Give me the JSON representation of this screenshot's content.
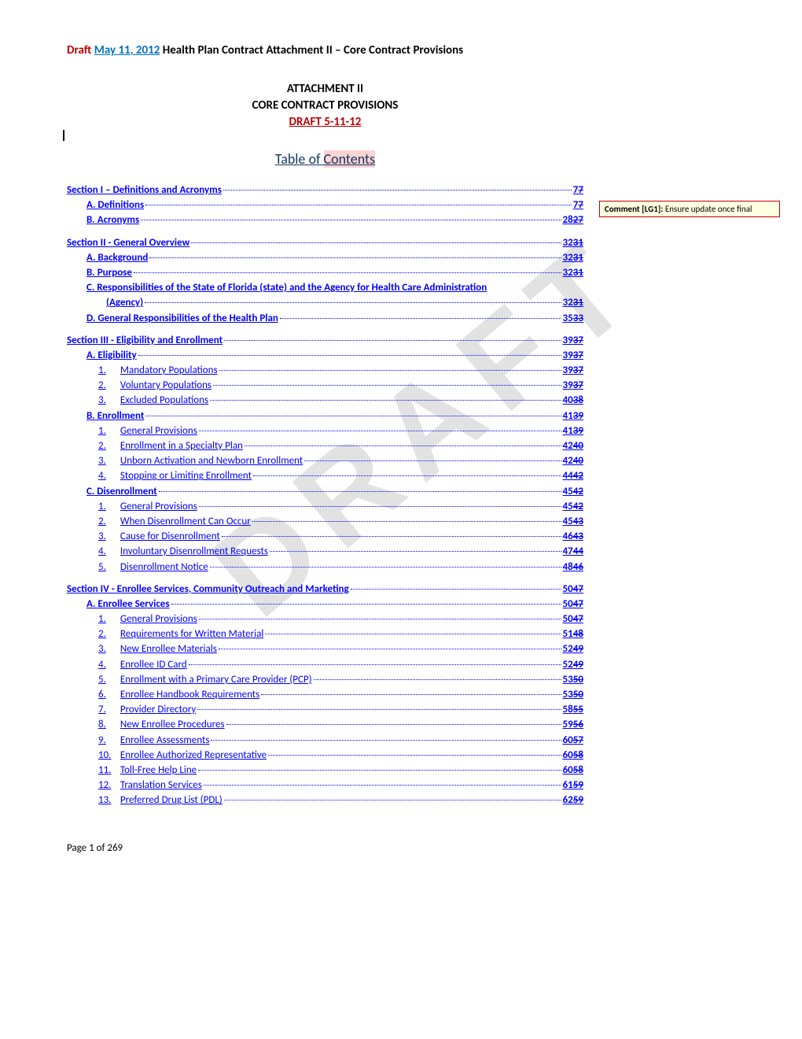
{
  "header": {
    "draft": "Draft ",
    "date_underlined": "May 11",
    "date_after": ", 2012",
    "rest": " Health Plan Contract Attachment II – Core Contract Provisions"
  },
  "title_block": {
    "line1": "ATTACHMENT II",
    "line2": "CORE CONTRACT PROVISIONS",
    "line3": "DRAFT 5-11-12"
  },
  "toc_title": {
    "prefix": "Table of ",
    "highlight": "Contents"
  },
  "sections": [
    {
      "type": "section",
      "text": "Section I – Definitions and Acronyms",
      "page_new": " 7",
      "page_old": "7"
    },
    {
      "type": "sub",
      "text": "A.  Definitions",
      "page_new": "7",
      "page_old": "7"
    },
    {
      "type": "sub",
      "text": "B.  Acronyms",
      "page_new": "28",
      "page_old": "27"
    },
    {
      "type": "section",
      "text": "Section II - General Overview",
      "page_new": "32",
      "page_old": "31"
    },
    {
      "type": "sub",
      "text": "A.  Background",
      "page_new": "32",
      "page_old": "31"
    },
    {
      "type": "sub",
      "text": "B.  Purpose",
      "page_new": "32",
      "page_old": "31"
    },
    {
      "type": "sub_wrap",
      "text": "C.  Responsibilities of the State of Florida (state) and the Agency for Health Care Administration",
      "text2": "(Agency)",
      "page_new": "32",
      "page_old": "31"
    },
    {
      "type": "sub",
      "text": "D.  General Responsibilities of the Health Plan",
      "page_new": "35",
      "page_old": "33"
    },
    {
      "type": "section",
      "text": "Section III - Eligibility and Enrollment",
      "page_new": "39",
      "page_old": "37"
    },
    {
      "type": "sub",
      "text": "A.  Eligibility",
      "page_new": "39",
      "page_old": "37"
    },
    {
      "type": "item",
      "num": "1.",
      "text": "Mandatory Populations",
      "page_new": "39",
      "page_old": "37"
    },
    {
      "type": "item",
      "num": "2.",
      "text": "Voluntary Populations",
      "page_new": "39",
      "page_old": "37"
    },
    {
      "type": "item",
      "num": "3.",
      "text": "Excluded Populations",
      "page_new": "40",
      "page_old": "38"
    },
    {
      "type": "sub",
      "text": "B.  Enrollment",
      "page_new": "41",
      "page_old": "39"
    },
    {
      "type": "item",
      "num": "1.",
      "text": "General Provisions",
      "page_new": "41",
      "page_old": "39"
    },
    {
      "type": "item",
      "num": "2.",
      "text": "Enrollment in a Specialty Plan",
      "page_new": "42",
      "page_old": "40"
    },
    {
      "type": "item",
      "num": "3.",
      "text": "Unborn Activation and Newborn Enrollment",
      "page_new": "42",
      "page_old": "40"
    },
    {
      "type": "item",
      "num": "4.",
      "text": "Stopping or Limiting Enrollment",
      "page_new": "44",
      "page_old": "42"
    },
    {
      "type": "sub",
      "text": "C.  Disenrollment",
      "page_new": "45",
      "page_old": "42"
    },
    {
      "type": "item",
      "num": "1.",
      "text": "General Provisions",
      "page_new": "45",
      "page_old": "42"
    },
    {
      "type": "item",
      "num": "2.",
      "text": "When Disenrollment Can Occur",
      "page_new": "45",
      "page_old": "43"
    },
    {
      "type": "item",
      "num": "3.",
      "text": "Cause for Disenrollment",
      "page_new": "46",
      "page_old": "43"
    },
    {
      "type": "item",
      "num": "4.",
      "text": "Involuntary Disenrollment Requests",
      "page_new": "47",
      "page_old": "44"
    },
    {
      "type": "item",
      "num": "5.",
      "text": "Disenrollment Notice",
      "page_new": "48",
      "page_old": "46"
    },
    {
      "type": "section",
      "text": "Section IV - Enrollee Services, Community Outreach and Marketing",
      "page_new": "50",
      "page_old": "47"
    },
    {
      "type": "sub",
      "text": "A.  Enrollee Services",
      "page_new": "50",
      "page_old": "47"
    },
    {
      "type": "item",
      "num": "1.",
      "text": "General Provisions",
      "page_new": "50",
      "page_old": "47"
    },
    {
      "type": "item",
      "num": "2.",
      "text": "Requirements for Written Material",
      "page_new": "51",
      "page_old": "48"
    },
    {
      "type": "item",
      "num": "3.",
      "text": "New Enrollee Materials",
      "page_new": "52",
      "page_old": "49"
    },
    {
      "type": "item",
      "num": "4.",
      "text": "Enrollee ID Card",
      "page_new": "52",
      "page_old": "49"
    },
    {
      "type": "item",
      "num": "5.",
      "text": "Enrollment with a Primary Care Provider (PCP)",
      "page_new": "53",
      "page_old": "50"
    },
    {
      "type": "item",
      "num": "6.",
      "text": "Enrollee Handbook Requirements",
      "page_new": "53",
      "page_old": "50"
    },
    {
      "type": "item",
      "num": "7.",
      "text": "Provider Directory",
      "page_new": "58",
      "page_old": "55"
    },
    {
      "type": "item",
      "num": "8.",
      "text": "New Enrollee Procedures",
      "page_new": "59",
      "page_old": "56"
    },
    {
      "type": "item",
      "num": "9.",
      "text": "Enrollee Assessments",
      "page_new": "60",
      "page_old": "57"
    },
    {
      "type": "item",
      "num": "10.",
      "text": "Enrollee Authorized Representative",
      "page_new": "60",
      "page_old": "58"
    },
    {
      "type": "item",
      "num": "11.",
      "text": "Toll-Free Help Line",
      "page_new": "60",
      "page_old": "58"
    },
    {
      "type": "item",
      "num": "12.",
      "text": "Translation Services",
      "page_new": "61",
      "page_old": "59"
    },
    {
      "type": "item",
      "num": "13.",
      "text": "Preferred Drug List (PDL)",
      "page_new": "62",
      "page_old": "59"
    }
  ],
  "footer": "Page 1 of 269",
  "comment": {
    "label": "Comment [LG1]:",
    "text": " Ensure update once final"
  },
  "watermark": "DRAFT"
}
